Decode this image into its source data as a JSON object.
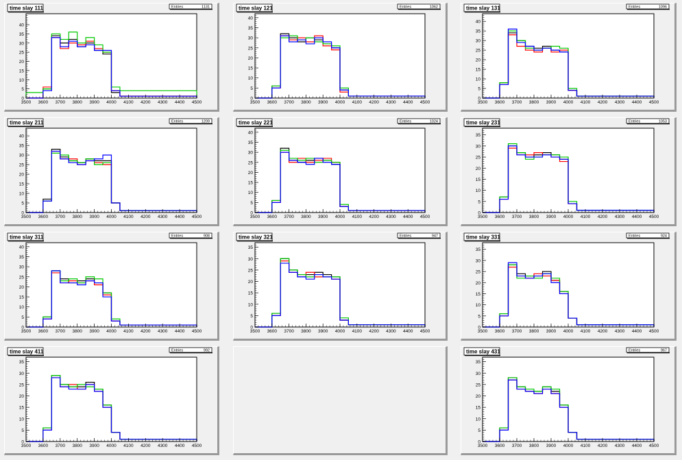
{
  "chart_data": [
    {
      "type": "histogram",
      "title": "time slay 111",
      "stats_label": "Entries",
      "stats_value": "1131",
      "xlim": [
        3500,
        4500
      ],
      "ylim": [
        0,
        46
      ],
      "x_ticks": [
        3500,
        3600,
        3700,
        3800,
        3900,
        4000,
        4100,
        4200,
        4300,
        4400,
        4500
      ],
      "y_ticks": [
        0,
        5,
        10,
        15,
        20,
        25,
        30,
        35,
        40
      ],
      "bin_edges": [
        3500,
        3600,
        3650,
        3700,
        3750,
        3800,
        3850,
        3900,
        3950,
        4000,
        4050,
        4500
      ],
      "series": [
        {
          "color": "#000000",
          "values": [
            0,
            5,
            34,
            30,
            32,
            28,
            30,
            26,
            24,
            3,
            1
          ]
        },
        {
          "color": "#ff0000",
          "values": [
            0,
            6,
            33,
            27,
            30,
            29,
            31,
            27,
            25,
            4,
            1
          ]
        },
        {
          "color": "#00c800",
          "values": [
            3,
            5,
            35,
            32,
            36,
            30,
            33,
            29,
            25,
            6,
            4
          ]
        },
        {
          "color": "#0000ff",
          "values": [
            0,
            4,
            33,
            28,
            31,
            28,
            29,
            26,
            26,
            4,
            1
          ]
        }
      ]
    },
    {
      "type": "histogram",
      "title": "time slay 121",
      "stats_label": "Entries",
      "stats_value": "1062",
      "xlim": [
        3500,
        4500
      ],
      "ylim": [
        0,
        42
      ],
      "x_ticks": [
        3500,
        3600,
        3700,
        3800,
        3900,
        4000,
        4100,
        4200,
        4300,
        4400,
        4500
      ],
      "y_ticks": [
        0,
        5,
        10,
        15,
        20,
        25,
        30,
        35,
        40
      ],
      "bin_edges": [
        3500,
        3600,
        3650,
        3700,
        3750,
        3800,
        3850,
        3900,
        3950,
        4000,
        4050,
        4500
      ],
      "series": [
        {
          "color": "#000000",
          "values": [
            0,
            6,
            32,
            30,
            28,
            30,
            29,
            27,
            25,
            4,
            1
          ]
        },
        {
          "color": "#ff0000",
          "values": [
            0,
            5,
            31,
            29,
            30,
            28,
            31,
            26,
            24,
            3,
            1
          ]
        },
        {
          "color": "#00c800",
          "values": [
            0,
            6,
            30,
            31,
            29,
            30,
            28,
            27,
            26,
            5,
            1
          ]
        },
        {
          "color": "#0000ff",
          "values": [
            0,
            5,
            31,
            28,
            29,
            27,
            30,
            28,
            25,
            4,
            1
          ]
        }
      ]
    },
    {
      "type": "histogram",
      "title": "time slay 131",
      "stats_label": "Entries",
      "stats_value": "1096",
      "xlim": [
        3500,
        4500
      ],
      "ylim": [
        0,
        44
      ],
      "x_ticks": [
        3500,
        3600,
        3700,
        3800,
        3900,
        4000,
        4100,
        4200,
        4300,
        4400,
        4500
      ],
      "y_ticks": [
        0,
        5,
        10,
        15,
        20,
        25,
        30,
        35,
        40
      ],
      "bin_edges": [
        3500,
        3600,
        3650,
        3700,
        3750,
        3800,
        3850,
        3900,
        3950,
        4000,
        4050,
        4500
      ],
      "series": [
        {
          "color": "#000000",
          "values": [
            0,
            8,
            34,
            30,
            27,
            26,
            27,
            25,
            24,
            4,
            1
          ]
        },
        {
          "color": "#ff0000",
          "values": [
            0,
            7,
            33,
            27,
            25,
            24,
            26,
            24,
            25,
            4,
            1
          ]
        },
        {
          "color": "#00c800",
          "values": [
            0,
            8,
            35,
            30,
            26,
            25,
            26,
            27,
            26,
            5,
            1
          ]
        },
        {
          "color": "#0000ff",
          "values": [
            0,
            7,
            36,
            29,
            27,
            25,
            26,
            25,
            24,
            4,
            1
          ]
        }
      ]
    },
    {
      "type": "histogram",
      "title": "time slay 211",
      "stats_label": "Entries",
      "stats_value": "1209",
      "xlim": [
        3500,
        4500
      ],
      "ylim": [
        0,
        44
      ],
      "x_ticks": [
        3500,
        3600,
        3700,
        3800,
        3900,
        4000,
        4100,
        4200,
        4300,
        4400,
        4500
      ],
      "y_ticks": [
        0,
        5,
        10,
        15,
        20,
        25,
        30,
        35,
        40
      ],
      "bin_edges": [
        3500,
        3600,
        3650,
        3700,
        3750,
        3800,
        3850,
        3900,
        3950,
        4000,
        4050,
        4500
      ],
      "series": [
        {
          "color": "#000000",
          "values": [
            0,
            7,
            33,
            29,
            27,
            26,
            28,
            27,
            27,
            5,
            1
          ]
        },
        {
          "color": "#ff0000",
          "values": [
            0,
            6,
            32,
            28,
            28,
            25,
            27,
            26,
            25,
            5,
            1
          ]
        },
        {
          "color": "#00c800",
          "values": [
            0,
            6,
            31,
            30,
            27,
            26,
            28,
            25,
            26,
            5,
            1
          ]
        },
        {
          "color": "#0000ff",
          "values": [
            0,
            6,
            32,
            28,
            26,
            25,
            27,
            28,
            30,
            5,
            1
          ]
        }
      ]
    },
    {
      "type": "histogram",
      "title": "time slay 221",
      "stats_label": "Entries",
      "stats_value": "1024",
      "xlim": [
        3500,
        4500
      ],
      "ylim": [
        0,
        42
      ],
      "x_ticks": [
        3500,
        3600,
        3700,
        3800,
        3900,
        4000,
        4100,
        4200,
        4300,
        4400,
        4500
      ],
      "y_ticks": [
        0,
        5,
        10,
        15,
        20,
        25,
        30,
        35,
        40
      ],
      "bin_edges": [
        3500,
        3600,
        3650,
        3700,
        3750,
        3800,
        3850,
        3900,
        3950,
        4000,
        4050,
        4500
      ],
      "series": [
        {
          "color": "#000000",
          "values": [
            0,
            6,
            32,
            26,
            25,
            26,
            27,
            26,
            24,
            3,
            1
          ]
        },
        {
          "color": "#ff0000",
          "values": [
            0,
            5,
            30,
            25,
            27,
            25,
            26,
            27,
            25,
            3,
            1
          ]
        },
        {
          "color": "#00c800",
          "values": [
            0,
            6,
            31,
            27,
            26,
            27,
            25,
            26,
            25,
            4,
            1
          ]
        },
        {
          "color": "#0000ff",
          "values": [
            0,
            5,
            30,
            26,
            25,
            24,
            27,
            25,
            24,
            3,
            1
          ]
        }
      ]
    },
    {
      "type": "histogram",
      "title": "time slay 231",
      "stats_label": "Entries",
      "stats_value": "1053",
      "xlim": [
        3500,
        4500
      ],
      "ylim": [
        0,
        38
      ],
      "x_ticks": [
        3500,
        3600,
        3700,
        3800,
        3900,
        4000,
        4100,
        4200,
        4300,
        4400,
        4500
      ],
      "y_ticks": [
        0,
        5,
        10,
        15,
        20,
        25,
        30,
        35
      ],
      "bin_edges": [
        3500,
        3600,
        3650,
        3700,
        3750,
        3800,
        3850,
        3900,
        3950,
        4000,
        4050,
        4500
      ],
      "series": [
        {
          "color": "#000000",
          "values": [
            0,
            7,
            30,
            27,
            25,
            26,
            27,
            26,
            24,
            4,
            1
          ]
        },
        {
          "color": "#ff0000",
          "values": [
            0,
            6,
            29,
            26,
            26,
            27,
            26,
            25,
            23,
            4,
            1
          ]
        },
        {
          "color": "#00c800",
          "values": [
            0,
            7,
            31,
            27,
            24,
            25,
            26,
            26,
            25,
            5,
            1
          ]
        },
        {
          "color": "#0000ff",
          "values": [
            0,
            6,
            30,
            26,
            25,
            25,
            26,
            25,
            24,
            4,
            1
          ]
        }
      ]
    },
    {
      "type": "histogram",
      "title": "time slay 311",
      "stats_label": "Entries",
      "stats_value": "908",
      "xlim": [
        3500,
        4500
      ],
      "ylim": [
        0,
        42
      ],
      "x_ticks": [
        3500,
        3600,
        3700,
        3800,
        3900,
        4000,
        4100,
        4200,
        4300,
        4400,
        4500
      ],
      "y_ticks": [
        0,
        5,
        10,
        15,
        20,
        25,
        30,
        35,
        40
      ],
      "bin_edges": [
        3500,
        3600,
        3650,
        3700,
        3750,
        3800,
        3850,
        3900,
        3950,
        4000,
        4050,
        4500
      ],
      "series": [
        {
          "color": "#000000",
          "values": [
            0,
            5,
            28,
            24,
            22,
            23,
            24,
            22,
            17,
            3,
            1
          ]
        },
        {
          "color": "#ff0000",
          "values": [
            0,
            4,
            27,
            22,
            23,
            22,
            23,
            21,
            16,
            3,
            1
          ]
        },
        {
          "color": "#00c800",
          "values": [
            0,
            5,
            28,
            23,
            24,
            22,
            25,
            24,
            17,
            4,
            1
          ]
        },
        {
          "color": "#0000ff",
          "values": [
            0,
            4,
            28,
            22,
            22,
            21,
            23,
            22,
            15,
            3,
            1
          ]
        }
      ]
    },
    {
      "type": "histogram",
      "title": "time slay 321",
      "stats_label": "Entries",
      "stats_value": "947",
      "xlim": [
        3500,
        4500
      ],
      "ylim": [
        0,
        37
      ],
      "x_ticks": [
        3500,
        3600,
        3700,
        3800,
        3900,
        4000,
        4100,
        4200,
        4300,
        4400,
        4500
      ],
      "y_ticks": [
        0,
        5,
        10,
        15,
        20,
        25,
        30,
        35
      ],
      "bin_edges": [
        3500,
        3600,
        3650,
        3700,
        3750,
        3800,
        3850,
        3900,
        3950,
        4000,
        4050,
        4500
      ],
      "series": [
        {
          "color": "#000000",
          "values": [
            0,
            6,
            30,
            25,
            22,
            23,
            24,
            23,
            22,
            3,
            1
          ]
        },
        {
          "color": "#ff0000",
          "values": [
            0,
            5,
            29,
            24,
            23,
            24,
            22,
            22,
            21,
            3,
            1
          ]
        },
        {
          "color": "#00c800",
          "values": [
            0,
            6,
            30,
            25,
            23,
            22,
            23,
            22,
            22,
            4,
            1
          ]
        },
        {
          "color": "#0000ff",
          "values": [
            0,
            5,
            28,
            24,
            22,
            21,
            23,
            22,
            21,
            3,
            1
          ]
        }
      ]
    },
    {
      "type": "histogram",
      "title": "time slay 331",
      "stats_label": "Entries",
      "stats_value": "924",
      "xlim": [
        3500,
        4500
      ],
      "ylim": [
        0,
        38
      ],
      "x_ticks": [
        3500,
        3600,
        3700,
        3800,
        3900,
        4000,
        4100,
        4200,
        4300,
        4400,
        4500
      ],
      "y_ticks": [
        0,
        5,
        10,
        15,
        20,
        25,
        30,
        35
      ],
      "bin_edges": [
        3500,
        3600,
        3650,
        3700,
        3750,
        3800,
        3850,
        3900,
        3950,
        4000,
        4050,
        4500
      ],
      "series": [
        {
          "color": "#000000",
          "values": [
            0,
            6,
            28,
            24,
            23,
            23,
            25,
            21,
            16,
            4,
            1
          ]
        },
        {
          "color": "#ff0000",
          "values": [
            0,
            5,
            27,
            23,
            22,
            24,
            23,
            21,
            15,
            4,
            1
          ]
        },
        {
          "color": "#00c800",
          "values": [
            0,
            6,
            28,
            22,
            23,
            22,
            24,
            22,
            16,
            4,
            1
          ]
        },
        {
          "color": "#0000ff",
          "values": [
            0,
            5,
            29,
            23,
            22,
            23,
            24,
            20,
            15,
            4,
            1
          ]
        }
      ]
    },
    {
      "type": "histogram",
      "title": "time slay 411",
      "stats_label": "Entries",
      "stats_value": "992",
      "xlim": [
        3500,
        4500
      ],
      "ylim": [
        0,
        37
      ],
      "x_ticks": [
        3500,
        3600,
        3700,
        3800,
        3900,
        4000,
        4100,
        4200,
        4300,
        4400,
        4500
      ],
      "y_ticks": [
        0,
        5,
        10,
        15,
        20,
        25,
        30,
        35
      ],
      "bin_edges": [
        3500,
        3600,
        3650,
        3700,
        3750,
        3800,
        3850,
        3900,
        3950,
        4000,
        4050,
        4500
      ],
      "series": [
        {
          "color": "#000000",
          "values": [
            0,
            6,
            29,
            25,
            24,
            24,
            26,
            23,
            16,
            4,
            1
          ]
        },
        {
          "color": "#ff0000",
          "values": [
            0,
            5,
            28,
            24,
            25,
            23,
            25,
            22,
            15,
            4,
            1
          ]
        },
        {
          "color": "#00c800",
          "values": [
            0,
            6,
            29,
            25,
            24,
            25,
            24,
            23,
            16,
            4,
            1
          ]
        },
        {
          "color": "#0000ff",
          "values": [
            0,
            5,
            28,
            24,
            23,
            23,
            25,
            22,
            15,
            4,
            1
          ]
        }
      ]
    },
    {
      "type": "histogram",
      "title": "time slay 431",
      "stats_label": "Entries",
      "stats_value": "967",
      "xlim": [
        3500,
        4500
      ],
      "ylim": [
        0,
        37
      ],
      "x_ticks": [
        3500,
        3600,
        3700,
        3800,
        3900,
        4000,
        4100,
        4200,
        4300,
        4400,
        4500
      ],
      "y_ticks": [
        0,
        5,
        10,
        15,
        20,
        25,
        30,
        35
      ],
      "bin_edges": [
        3500,
        3600,
        3650,
        3700,
        3750,
        3800,
        3850,
        3900,
        3950,
        4000,
        4050,
        4500
      ],
      "series": [
        {
          "color": "#000000",
          "values": [
            0,
            6,
            28,
            24,
            22,
            22,
            24,
            22,
            16,
            4,
            1
          ]
        },
        {
          "color": "#ff0000",
          "values": [
            0,
            5,
            27,
            23,
            22,
            21,
            23,
            21,
            15,
            4,
            1
          ]
        },
        {
          "color": "#00c800",
          "values": [
            0,
            6,
            28,
            24,
            23,
            22,
            24,
            23,
            16,
            4,
            1
          ]
        },
        {
          "color": "#0000ff",
          "values": [
            0,
            5,
            27,
            23,
            22,
            21,
            23,
            21,
            15,
            4,
            1
          ]
        }
      ]
    }
  ]
}
